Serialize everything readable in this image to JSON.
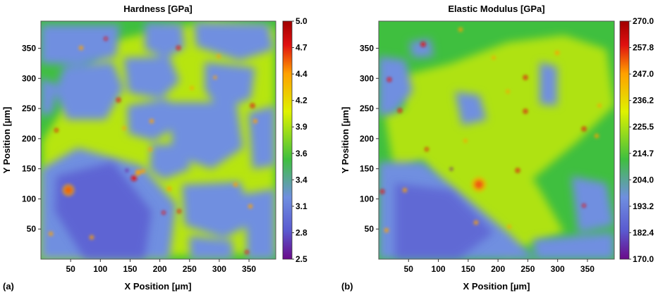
{
  "panels": [
    {
      "label": "(a)",
      "title": "Hardness [GPa]",
      "xlabel": "X Position [µm]",
      "ylabel": "Y Position [µm]",
      "colorbar_ticks": [
        "5.0",
        "4.7",
        "4.4",
        "4.2",
        "3.9",
        "3.6",
        "3.4",
        "3.1",
        "2.8",
        "2.5"
      ]
    },
    {
      "label": "(b)",
      "title": "Elastic Modulus [GPa]",
      "xlabel": "X Position [µm]",
      "ylabel": "Y Position [µm]",
      "colorbar_ticks": [
        "270.0",
        "257.8",
        "247.0",
        "236.2",
        "225.5",
        "214.7",
        "204.0",
        "193.2",
        "182.4",
        "170.0"
      ]
    }
  ],
  "colormap": [
    "#6a0a8a",
    "#5a5ad0",
    "#6f8fe0",
    "#3fbf3f",
    "#dff200",
    "#ffa000",
    "#e01010",
    "#a00000"
  ],
  "chart_data": [
    {
      "type": "heatmap",
      "title": "Hardness [GPa]",
      "xlabel": "X Position [µm]",
      "ylabel": "Y Position [µm]",
      "xlim": [
        0,
        395
      ],
      "ylim": [
        0,
        395
      ],
      "xticks": [
        50,
        100,
        150,
        200,
        250,
        300,
        350
      ],
      "yticks": [
        50,
        100,
        150,
        200,
        250,
        300,
        350
      ],
      "colorbar_range": [
        2.5,
        5.0
      ],
      "colorbar_ticks": [
        5.0,
        4.7,
        4.4,
        4.2,
        3.9,
        3.6,
        3.4,
        3.1,
        2.8,
        2.5
      ]
    },
    {
      "type": "heatmap",
      "title": "Elastic Modulus [GPa]",
      "xlabel": "X Position [µm]",
      "ylabel": "Y Position [µm]",
      "xlim": [
        0,
        395
      ],
      "ylim": [
        0,
        395
      ],
      "xticks": [
        50,
        100,
        150,
        200,
        250,
        300,
        350
      ],
      "yticks": [
        50,
        100,
        150,
        200,
        250,
        300,
        350
      ],
      "colorbar_range": [
        170.0,
        270.0
      ],
      "colorbar_ticks": [
        270.0,
        257.8,
        247.0,
        236.2,
        225.5,
        214.7,
        204.0,
        193.2,
        182.4,
        170.0
      ]
    }
  ]
}
